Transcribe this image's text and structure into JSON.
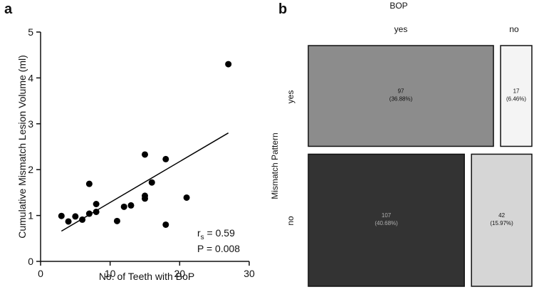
{
  "chart_data": [
    {
      "type": "scatter",
      "panel": "a",
      "xlabel": "No. of Teeth with BoP",
      "ylabel": "Cumulative Mismatch Lesion Volume (ml)",
      "xlim": [
        0,
        30
      ],
      "ylim": [
        0,
        5
      ],
      "xticks": [
        0,
        10,
        20,
        30
      ],
      "yticks": [
        0,
        1,
        2,
        3,
        4,
        5
      ],
      "points": [
        {
          "x": 3,
          "y": 0.99
        },
        {
          "x": 4,
          "y": 0.87
        },
        {
          "x": 5,
          "y": 0.98
        },
        {
          "x": 6,
          "y": 0.91
        },
        {
          "x": 7,
          "y": 1.04
        },
        {
          "x": 7,
          "y": 1.69
        },
        {
          "x": 8,
          "y": 1.08
        },
        {
          "x": 8,
          "y": 1.25
        },
        {
          "x": 11,
          "y": 0.88
        },
        {
          "x": 12,
          "y": 1.19
        },
        {
          "x": 13,
          "y": 1.22
        },
        {
          "x": 15,
          "y": 1.37
        },
        {
          "x": 15,
          "y": 1.43
        },
        {
          "x": 15,
          "y": 2.33
        },
        {
          "x": 16,
          "y": 1.72
        },
        {
          "x": 18,
          "y": 2.23
        },
        {
          "x": 18,
          "y": 0.8
        },
        {
          "x": 21,
          "y": 1.39
        },
        {
          "x": 27,
          "y": 4.3
        }
      ],
      "fit_line": {
        "x": [
          3,
          27
        ],
        "y": [
          0.66,
          2.8
        ]
      },
      "annotation": {
        "rs_label": "r",
        "rs_sub": "s",
        "rs_value": " = 0.59",
        "p": "P = 0.008"
      }
    },
    {
      "type": "mosaic",
      "panel": "b",
      "title": "BOP",
      "row_title": "Mismatch Pattern",
      "columns": [
        "yes",
        "no"
      ],
      "rows": [
        "yes",
        "no"
      ],
      "cells": [
        {
          "row": "yes",
          "col": "yes",
          "count": "97",
          "percent": "(36.88%)",
          "value": 97,
          "color": "#8c8c8c",
          "text_color": "#111111"
        },
        {
          "row": "yes",
          "col": "no",
          "count": "17",
          "percent": "(6.46%)",
          "value": 17,
          "color": "#f4f4f4",
          "text_color": "#111111"
        },
        {
          "row": "no",
          "col": "yes",
          "count": "107",
          "percent": "(40.68%)",
          "value": 107,
          "color": "#333333",
          "text_color": "#b0b0b0"
        },
        {
          "row": "no",
          "col": "no",
          "count": "42",
          "percent": "(15.97%)",
          "value": 42,
          "color": "#d6d6d6",
          "text_color": "#111111"
        }
      ]
    }
  ]
}
